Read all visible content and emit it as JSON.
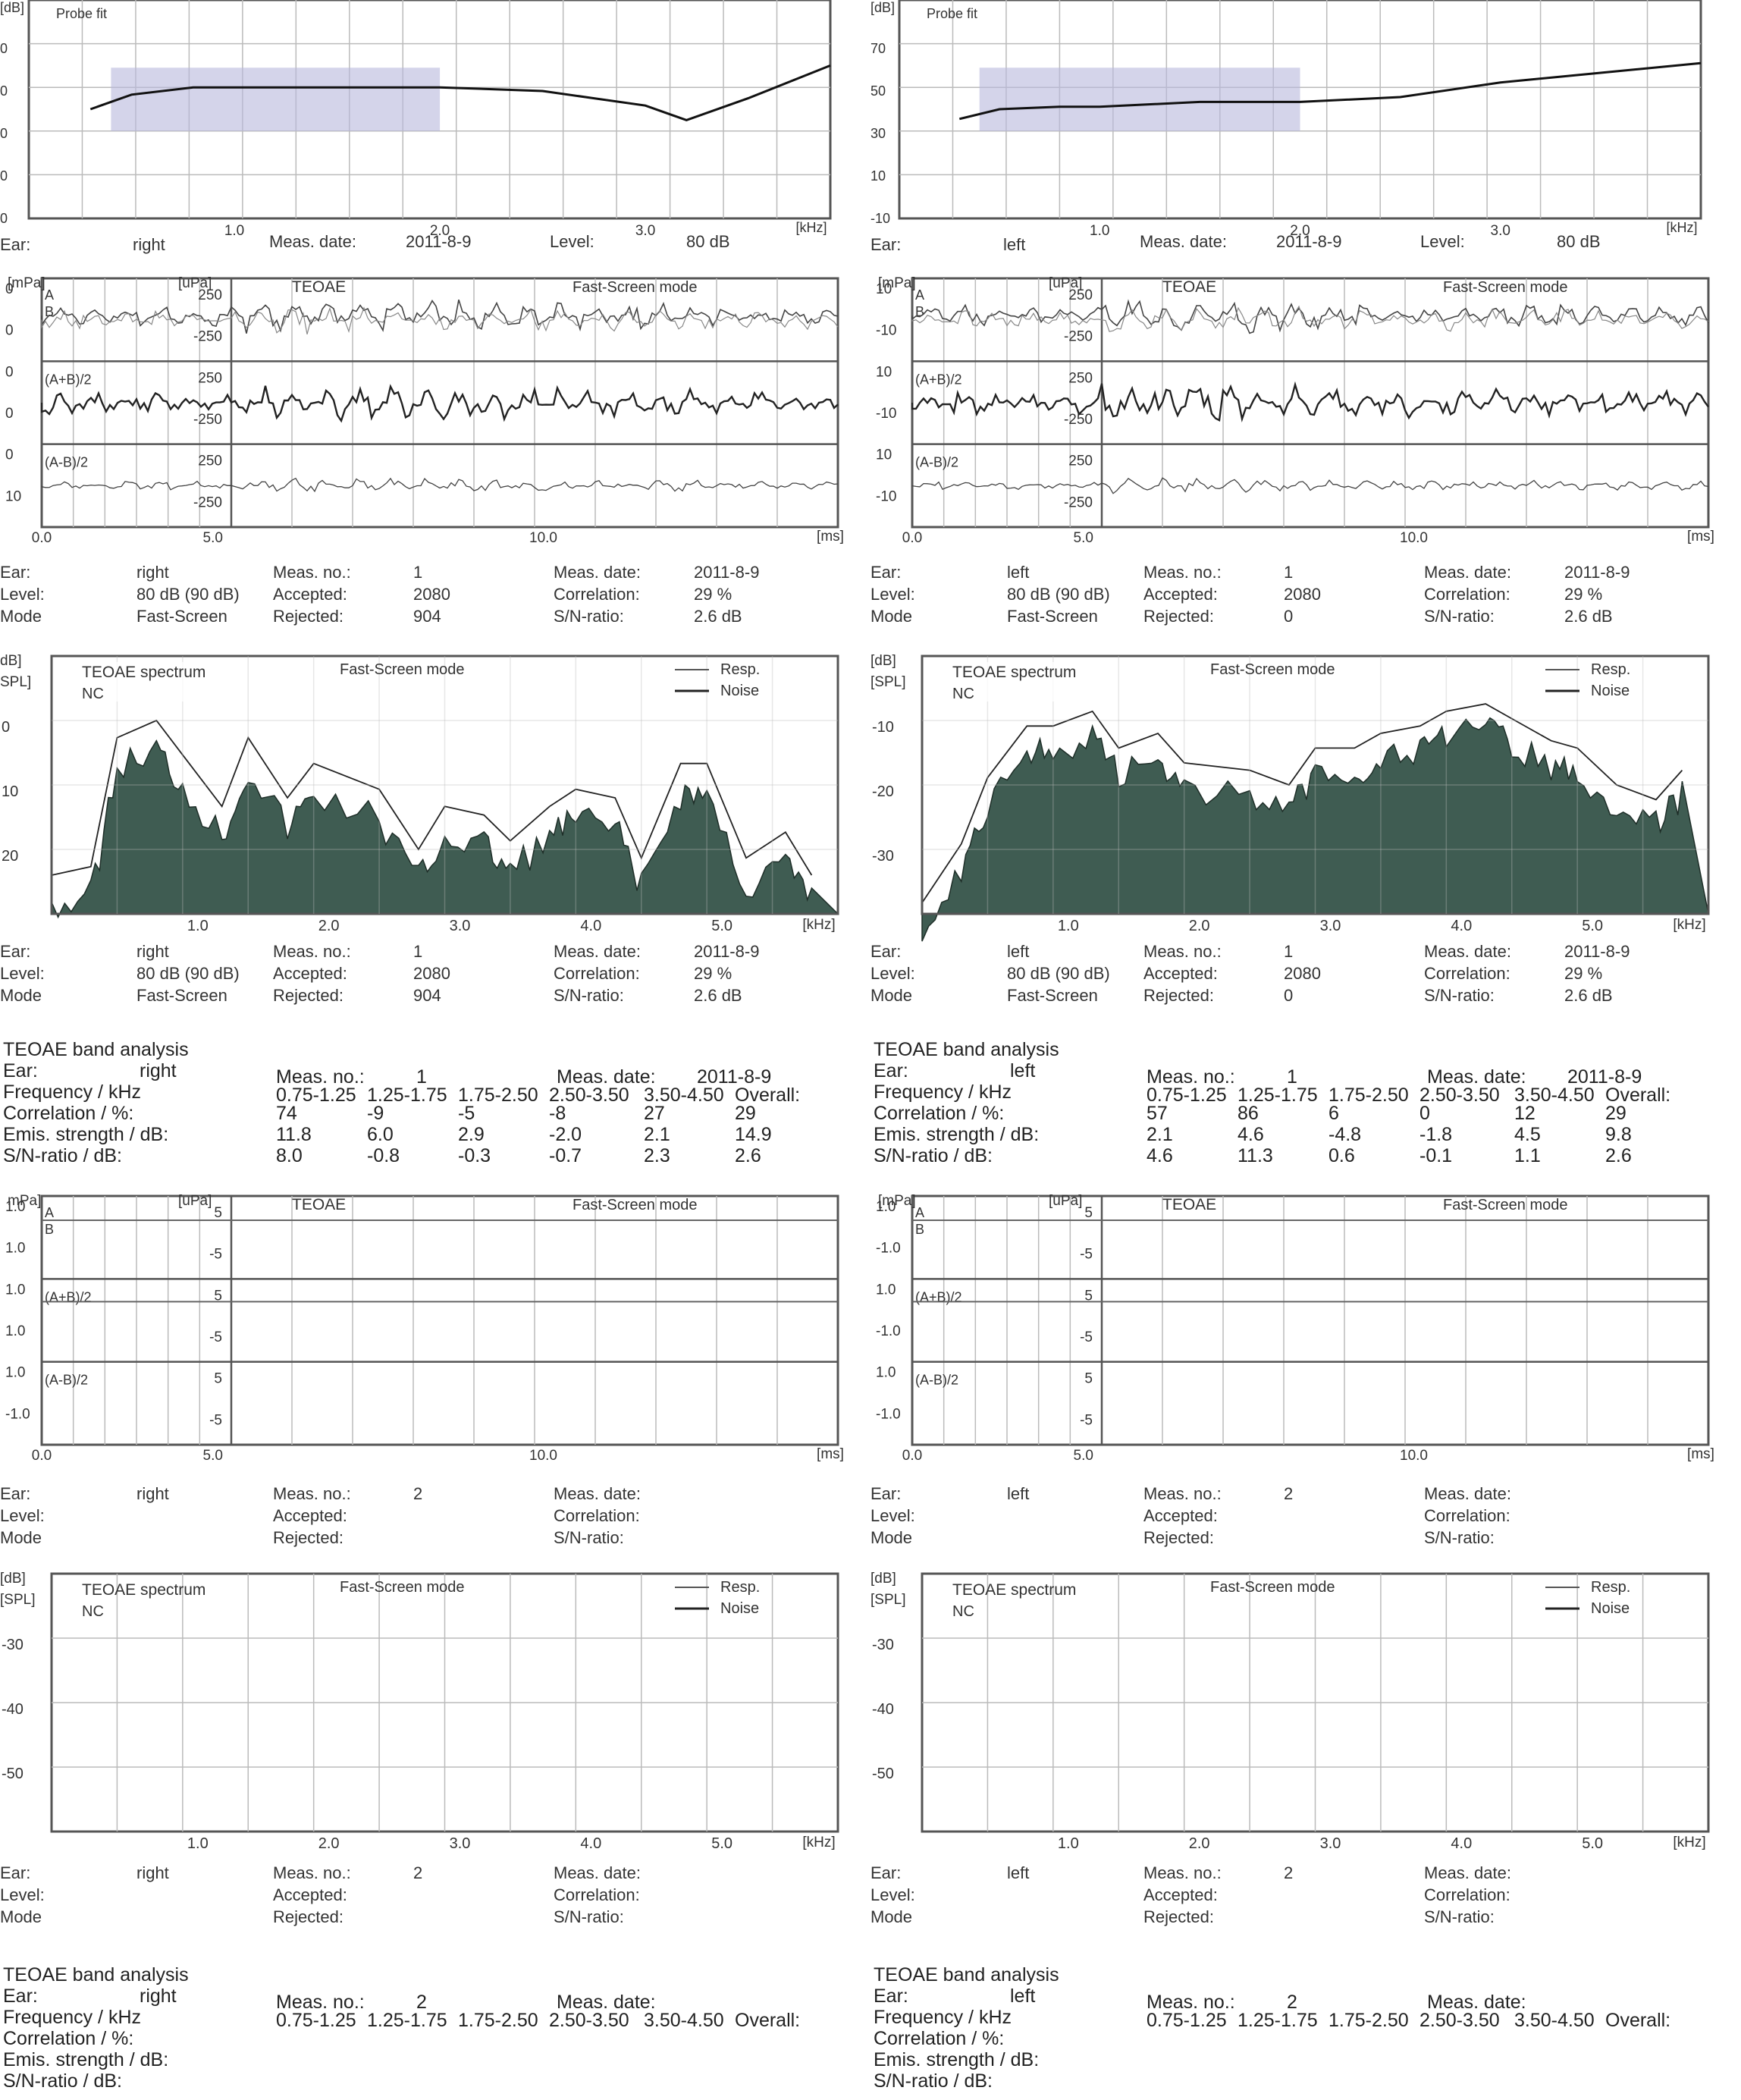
{
  "ears": [
    {
      "id": "right",
      "probe": {
        "title": "Probe fit",
        "unit": "[dB]",
        "yticks": [
          "0",
          "0",
          "0",
          "0",
          "0"
        ],
        "xticks": [
          "1.0",
          "2.0",
          "3.0"
        ],
        "xunit": "[kHz]",
        "ear_label": "Ear:",
        "ear": "right",
        "date_label": "Meas. date:",
        "date": "2011-8-9",
        "level_label": "Level:",
        "level": "80 dB"
      },
      "wave1": {
        "unit_left": "[mPa]",
        "unit_mid": "[uPa]",
        "title": "TEOAE",
        "mode": "Fast-Screen mode",
        "yleft": [
          "0",
          "0",
          "0",
          "0",
          "0",
          "10"
        ],
        "ymid": [
          "250",
          "-250",
          "250",
          "-250",
          "250",
          "-250"
        ],
        "labels": [
          "A",
          "B",
          "(A+B)/2",
          "(A-B)/2"
        ],
        "xticks": [
          "0.0",
          "5.0",
          "10.0"
        ],
        "xunit": "[ms]"
      },
      "info1": {
        "ear_label": "Ear:",
        "ear": "right",
        "level_label": "Level:",
        "level": "80 dB (90 dB)",
        "mode_label": "Mode",
        "mode": "Fast-Screen",
        "measno_label": "Meas. no.:",
        "measno": "1",
        "accepted_label": "Accepted:",
        "accepted": "2080",
        "rejected_label": "Rejected:",
        "rejected": "904",
        "date_label": "Meas. date:",
        "date": "2011-8-9",
        "corr_label": "Correlation:",
        "corr": "29 %",
        "sn_label": "S/N-ratio:",
        "sn": "2.6 dB"
      },
      "spec1": {
        "unit1": "dB]",
        "unit2": "SPL]",
        "title": "TEOAE spectrum",
        "nc": "NC",
        "mode": "Fast-Screen mode",
        "legend_resp": "Resp.",
        "legend_noise": "Noise",
        "yticks": [
          "0",
          "10",
          "20"
        ],
        "xticks": [
          "1.0",
          "2.0",
          "3.0",
          "4.0",
          "5.0"
        ],
        "xunit": "[kHz]"
      },
      "info2": {
        "ear_label": "Ear:",
        "ear": "right",
        "level_label": "Level:",
        "level": "80 dB (90 dB)",
        "mode_label": "Mode",
        "mode": "Fast-Screen",
        "measno_label": "Meas. no.:",
        "measno": "1",
        "accepted_label": "Accepted:",
        "accepted": "2080",
        "rejected_label": "Rejected:",
        "rejected": "904",
        "date_label": "Meas. date:",
        "date": "2011-8-9",
        "corr_label": "Correlation:",
        "corr": "29 %",
        "sn_label": "S/N-ratio:",
        "sn": "2.6 dB"
      },
      "band1": {
        "title": "TEOAE band analysis",
        "ear_label": "Ear:",
        "ear": "right",
        "measno_label": "Meas. no.:",
        "measno": "1",
        "date_label": "Meas. date:",
        "date": "2011-8-9",
        "freq_label": "Frequency / kHz",
        "corr_label": "Correlation / %:",
        "emis_label": "Emis. strength / dB:",
        "sn_label": "S/N-ratio / dB:",
        "headers": [
          "0.75-1.25",
          "1.25-1.75",
          "1.75-2.50",
          "2.50-3.50",
          "3.50-4.50",
          "Overall:"
        ],
        "corr": [
          "74",
          "-9",
          "-5",
          "-8",
          "27",
          "29"
        ],
        "emis": [
          "11.8",
          "6.0",
          "2.9",
          "-2.0",
          "2.1",
          "14.9"
        ],
        "sn": [
          "8.0",
          "-0.8",
          "-0.3",
          "-0.7",
          "2.3",
          "2.6"
        ]
      },
      "wave2": {
        "unit_left": "mPa]",
        "unit_mid": "[uPa]",
        "title": "TEOAE",
        "mode": "Fast-Screen mode",
        "yleft": [
          "1.0",
          "1.0",
          "1.0",
          "1.0",
          "1.0",
          "-1.0"
        ],
        "ymid": [
          "5",
          "-5",
          "5",
          "-5",
          "5",
          "-5"
        ],
        "labels": [
          "A",
          "B",
          "(A+B)/2",
          "(A-B)/2"
        ],
        "xticks": [
          "0.0",
          "5.0",
          "10.0"
        ],
        "xunit": "[ms]"
      },
      "info3": {
        "ear_label": "Ear:",
        "ear": "right",
        "level_label": "Level:",
        "level": "",
        "mode_label": "Mode",
        "mode": "",
        "measno_label": "Meas. no.:",
        "measno": "2",
        "accepted_label": "Accepted:",
        "accepted": "",
        "rejected_label": "Rejected:",
        "rejected": "",
        "date_label": "Meas. date:",
        "date": "",
        "corr_label": "Correlation:",
        "corr": "",
        "sn_label": "S/N-ratio:",
        "sn": ""
      },
      "spec2": {
        "unit1": "[dB]",
        "unit2": "[SPL]",
        "title": "TEOAE spectrum",
        "nc": "NC",
        "mode": "Fast-Screen mode",
        "legend_resp": "Resp.",
        "legend_noise": "Noise",
        "yticks": [
          "-30",
          "-40",
          "-50"
        ],
        "xticks": [
          "1.0",
          "2.0",
          "3.0",
          "4.0",
          "5.0"
        ],
        "xunit": "[kHz]"
      },
      "info4": {
        "ear_label": "Ear:",
        "ear": "right",
        "level_label": "Level:",
        "level": "",
        "mode_label": "Mode",
        "mode": "",
        "measno_label": "Meas. no.:",
        "measno": "2",
        "accepted_label": "Accepted:",
        "accepted": "",
        "rejected_label": "Rejected:",
        "rejected": "",
        "date_label": "Meas. date:",
        "date": "",
        "corr_label": "Correlation:",
        "corr": "",
        "sn_label": "S/N-ratio:",
        "sn": ""
      },
      "band2": {
        "title": "TEOAE band analysis",
        "ear_label": "Ear:",
        "ear": "right",
        "measno_label": "Meas. no.:",
        "measno": "2",
        "date_label": "Meas. date:",
        "date": "",
        "freq_label": "Frequency / kHz",
        "corr_label": "Correlation / %:",
        "emis_label": "Emis. strength / dB:",
        "sn_label": "S/N-ratio / dB:",
        "headers": [
          "0.75-1.25",
          "1.25-1.75",
          "1.75-2.50",
          "2.50-3.50",
          "3.50-4.50",
          "Overall:"
        ],
        "corr": [],
        "emis": [],
        "sn": []
      }
    },
    {
      "id": "left",
      "probe": {
        "title": "Probe fit",
        "unit": "[dB]",
        "yticks": [
          "70",
          "50",
          "30",
          "10",
          "-10"
        ],
        "xticks": [
          "1.0",
          "2.0",
          "3.0"
        ],
        "xunit": "[kHz]",
        "ear_label": "Ear:",
        "ear": "left",
        "date_label": "Meas. date:",
        "date": "2011-8-9",
        "level_label": "Level:",
        "level": "80 dB"
      },
      "wave1": {
        "unit_left": "[mPa]",
        "unit_mid": "[uPa]",
        "title": "TEOAE",
        "mode": "Fast-Screen mode",
        "yleft": [
          "10",
          "-10",
          "10",
          "-10",
          "10",
          "-10"
        ],
        "ymid": [
          "250",
          "-250",
          "250",
          "-250",
          "250",
          "-250"
        ],
        "labels": [
          "A",
          "B",
          "(A+B)/2",
          "(A-B)/2"
        ],
        "xticks": [
          "0.0",
          "5.0",
          "10.0"
        ],
        "xunit": "[ms]"
      },
      "info1": {
        "ear_label": "Ear:",
        "ear": "left",
        "level_label": "Level:",
        "level": "80 dB (90 dB)",
        "mode_label": "Mode",
        "mode": "Fast-Screen",
        "measno_label": "Meas. no.:",
        "measno": "1",
        "accepted_label": "Accepted:",
        "accepted": "2080",
        "rejected_label": "Rejected:",
        "rejected": "0",
        "date_label": "Meas. date:",
        "date": "2011-8-9",
        "corr_label": "Correlation:",
        "corr": "29 %",
        "sn_label": "S/N-ratio:",
        "sn": "2.6 dB"
      },
      "spec1": {
        "unit1": "[dB]",
        "unit2": "[SPL]",
        "title": "TEOAE spectrum",
        "nc": "NC",
        "mode": "Fast-Screen mode",
        "legend_resp": "Resp.",
        "legend_noise": "Noise",
        "yticks": [
          "-10",
          "-20",
          "-30"
        ],
        "xticks": [
          "1.0",
          "2.0",
          "3.0",
          "4.0",
          "5.0"
        ],
        "xunit": "[kHz]"
      },
      "info2": {
        "ear_label": "Ear:",
        "ear": "left",
        "level_label": "Level:",
        "level": "80 dB (90 dB)",
        "mode_label": "Mode",
        "mode": "Fast-Screen",
        "measno_label": "Meas. no.:",
        "measno": "1",
        "accepted_label": "Accepted:",
        "accepted": "2080",
        "rejected_label": "Rejected:",
        "rejected": "0",
        "date_label": "Meas. date:",
        "date": "2011-8-9",
        "corr_label": "Correlation:",
        "corr": "29 %",
        "sn_label": "S/N-ratio:",
        "sn": "2.6 dB"
      },
      "band1": {
        "title": "TEOAE band analysis",
        "ear_label": "Ear:",
        "ear": "left",
        "measno_label": "Meas. no.:",
        "measno": "1",
        "date_label": "Meas. date:",
        "date": "2011-8-9",
        "freq_label": "Frequency / kHz",
        "corr_label": "Correlation / %:",
        "emis_label": "Emis. strength / dB:",
        "sn_label": "S/N-ratio / dB:",
        "headers": [
          "0.75-1.25",
          "1.25-1.75",
          "1.75-2.50",
          "2.50-3.50",
          "3.50-4.50",
          "Overall:"
        ],
        "corr": [
          "57",
          "86",
          "6",
          "0",
          "12",
          "29"
        ],
        "emis": [
          "2.1",
          "4.6",
          "-4.8",
          "-1.8",
          "4.5",
          "9.8"
        ],
        "sn": [
          "4.6",
          "11.3",
          "0.6",
          "-0.1",
          "1.1",
          "2.6"
        ]
      },
      "wave2": {
        "unit_left": "[mPa]",
        "unit_mid": "[uPa]",
        "title": "TEOAE",
        "mode": "Fast-Screen mode",
        "yleft": [
          "1.0",
          "-1.0",
          "1.0",
          "-1.0",
          "1.0",
          "-1.0"
        ],
        "ymid": [
          "5",
          "-5",
          "5",
          "-5",
          "5",
          "-5"
        ],
        "labels": [
          "A",
          "B",
          "(A+B)/2",
          "(A-B)/2"
        ],
        "xticks": [
          "0.0",
          "5.0",
          "10.0"
        ],
        "xunit": "[ms]"
      },
      "info3": {
        "ear_label": "Ear:",
        "ear": "left",
        "level_label": "Level:",
        "level": "",
        "mode_label": "Mode",
        "mode": "",
        "measno_label": "Meas. no.:",
        "measno": "2",
        "accepted_label": "Accepted:",
        "accepted": "",
        "rejected_label": "Rejected:",
        "rejected": "",
        "date_label": "Meas. date:",
        "date": "",
        "corr_label": "Correlation:",
        "corr": "",
        "sn_label": "S/N-ratio:",
        "sn": ""
      },
      "spec2": {
        "unit1": "[dB]",
        "unit2": "[SPL]",
        "title": "TEOAE spectrum",
        "nc": "NC",
        "mode": "Fast-Screen mode",
        "legend_resp": "Resp.",
        "legend_noise": "Noise",
        "yticks": [
          "-30",
          "-40",
          "-50"
        ],
        "xticks": [
          "1.0",
          "2.0",
          "3.0",
          "4.0",
          "5.0"
        ],
        "xunit": "[kHz]"
      },
      "info4": {
        "ear_label": "Ear:",
        "ear": "left",
        "level_label": "Level:",
        "level": "",
        "mode_label": "Mode",
        "mode": "",
        "measno_label": "Meas. no.:",
        "measno": "2",
        "accepted_label": "Accepted:",
        "accepted": "",
        "rejected_label": "Rejected:",
        "rejected": "",
        "date_label": "Meas. date:",
        "date": "",
        "corr_label": "Correlation:",
        "corr": "",
        "sn_label": "S/N-ratio:",
        "sn": ""
      },
      "band2": {
        "title": "TEOAE band analysis",
        "ear_label": "Ear:",
        "ear": "left",
        "measno_label": "Meas. no.:",
        "measno": "2",
        "date_label": "Meas. date:",
        "date": "",
        "freq_label": "Frequency / kHz",
        "corr_label": "Correlation / %:",
        "emis_label": "Emis. strength / dB:",
        "sn_label": "S/N-ratio / dB:",
        "headers": [
          "0.75-1.25",
          "1.25-1.75",
          "1.75-2.50",
          "2.50-3.50",
          "3.50-4.50",
          "Overall:"
        ],
        "corr": [],
        "emis": [],
        "sn": []
      }
    }
  ],
  "chart_data": [
    {
      "type": "line",
      "title": "Probe fit",
      "ear": "right",
      "x": [
        0.3,
        0.5,
        0.8,
        1.0,
        1.5,
        2.0,
        2.5,
        3.0,
        3.2,
        3.5,
        3.9
      ],
      "y": [
        0,
        0.4,
        0.6,
        0.6,
        0.6,
        0.6,
        0.5,
        0.1,
        -0.3,
        0.3,
        1.2
      ],
      "band_x": [
        0.4,
        2.0
      ],
      "xlim": [
        0,
        3.9
      ],
      "xunit": "[kHz]"
    },
    {
      "type": "line",
      "title": "Probe fit",
      "ear": "left",
      "x": [
        0.3,
        0.5,
        0.8,
        1.0,
        1.5,
        2.0,
        2.5,
        3.0,
        3.5,
        4.0
      ],
      "y": [
        31,
        35,
        36,
        36,
        38,
        38,
        40,
        46,
        50,
        54
      ],
      "band_x": [
        0.4,
        2.0
      ],
      "xlim": [
        0,
        4.0
      ],
      "ylim": [
        -10,
        80
      ],
      "xunit": "[kHz]"
    },
    {
      "type": "area",
      "title": "TEOAE spectrum",
      "ear": "right",
      "x": [
        0.0,
        0.3,
        0.5,
        0.8,
        1.0,
        1.3,
        1.5,
        1.8,
        2.0,
        2.5,
        2.8,
        3.0,
        3.3,
        3.5,
        3.8,
        4.0,
        4.3,
        4.5,
        4.8,
        5.0,
        5.3,
        5.6,
        5.8
      ],
      "resp": [
        -22,
        -21,
        -6,
        -4,
        -8,
        -14,
        -6,
        -13,
        -9,
        -12,
        -19,
        -14,
        -15,
        -18,
        -14,
        -12,
        -13,
        -20,
        -9,
        -9,
        -20,
        -17,
        -22
      ],
      "xlim": [
        0,
        6
      ],
      "ylim": [
        -25,
        5
      ],
      "xunit": "[kHz]"
    },
    {
      "type": "area",
      "title": "TEOAE spectrum",
      "ear": "left",
      "x": [
        0.0,
        0.3,
        0.5,
        0.8,
        1.0,
        1.3,
        1.5,
        1.8,
        2.0,
        2.5,
        2.8,
        3.0,
        3.3,
        3.5,
        3.8,
        4.0,
        4.3,
        4.5,
        4.8,
        5.0,
        5.3,
        5.6,
        5.8
      ],
      "resp": [
        -38,
        -30,
        -21,
        -14,
        -14,
        -12,
        -17,
        -15,
        -19,
        -20,
        -22,
        -17,
        -17,
        -15,
        -14,
        -12,
        -11,
        -13,
        -16,
        -17,
        -22,
        -24,
        -20
      ],
      "xlim": [
        0,
        6
      ],
      "ylim": [
        -38,
        -3
      ],
      "xunit": "[kHz]"
    }
  ]
}
